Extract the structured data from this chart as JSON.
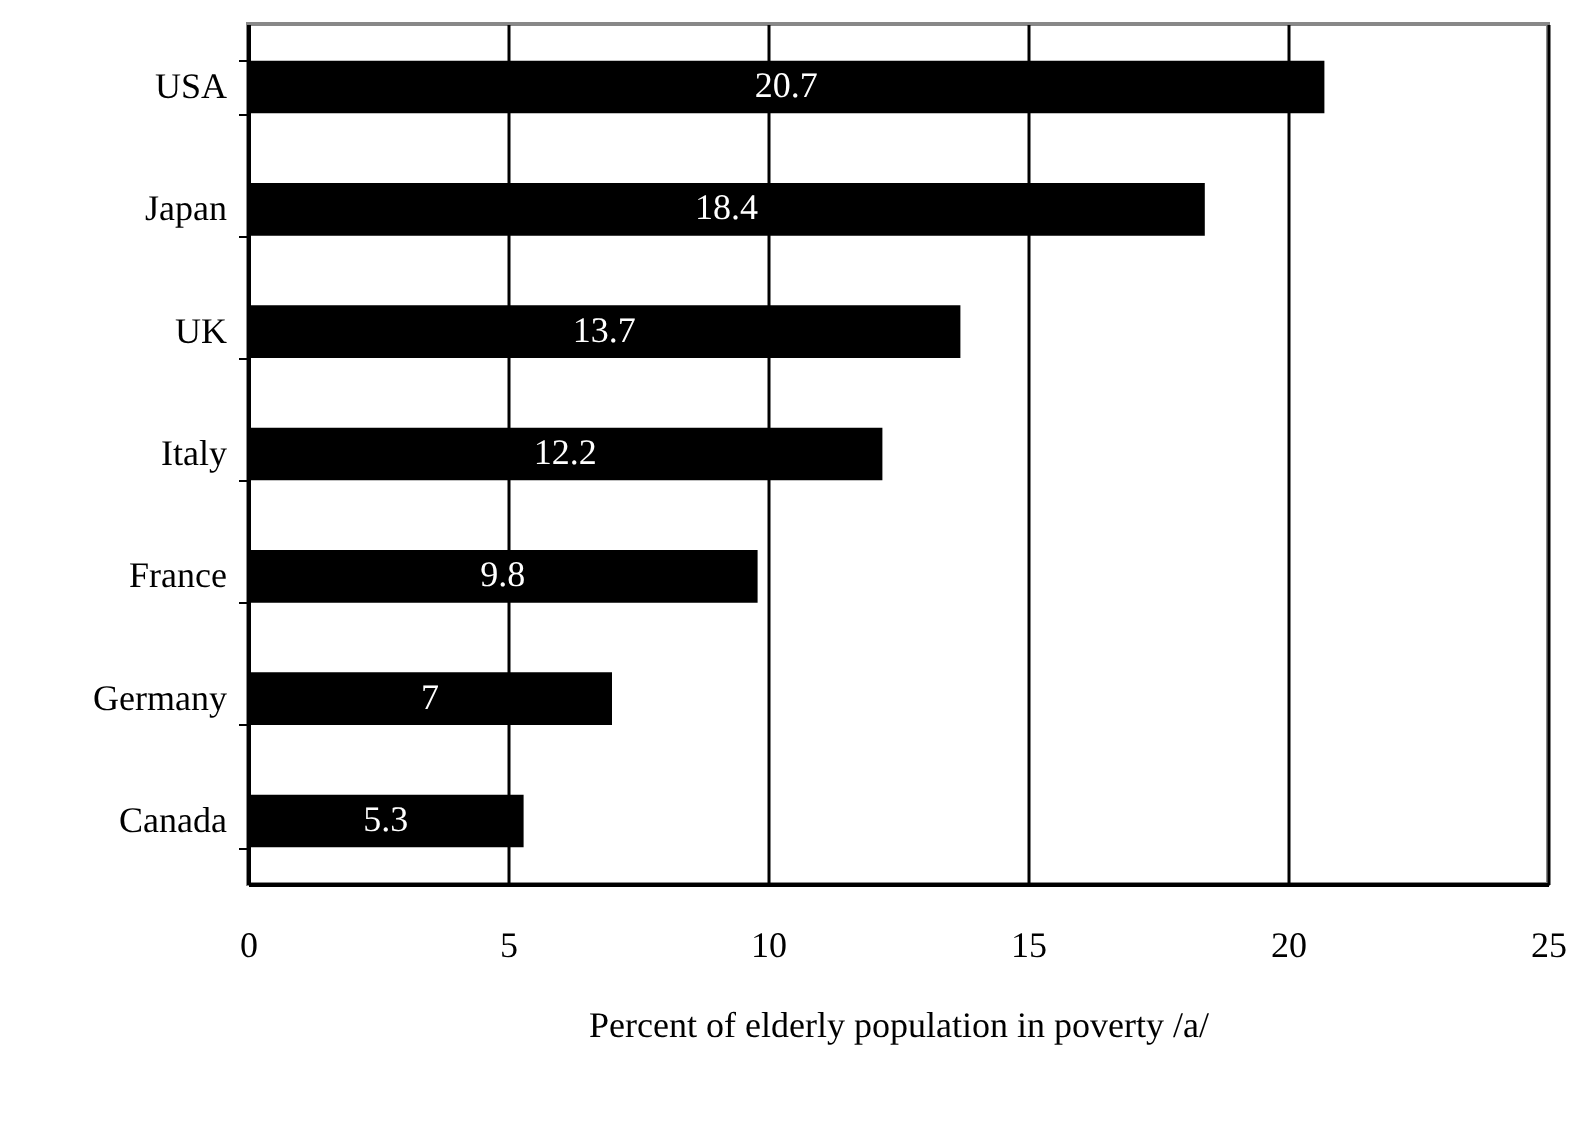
{
  "chart_data": {
    "type": "bar",
    "orientation": "horizontal",
    "xlabel": "Percent of elderly population in poverty /a/",
    "categories": [
      "USA",
      "Japan",
      "UK",
      "Italy",
      "France",
      "Germany",
      "Canada"
    ],
    "values": [
      20.7,
      18.4,
      13.7,
      12.2,
      9.8,
      7,
      5.3
    ],
    "color": "#000000",
    "xlim": [
      0,
      25
    ],
    "xticks": [
      0,
      5,
      10,
      15,
      20,
      25
    ],
    "grid": "x",
    "data_labels": true
  }
}
